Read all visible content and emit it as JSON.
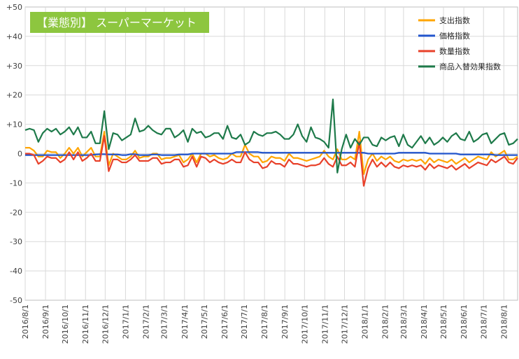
{
  "chart_data": {
    "type": "line",
    "title_badge": "【業態別】 スーパーマーケット",
    "x_start": "2016/8/1",
    "x_end": "2018/8/22",
    "x_tick_labels": [
      "2016/8/1",
      "2016/9/1",
      "2016/10/1",
      "2016/11/1",
      "2016/12/1",
      "2017/1/1",
      "2017/2/1",
      "2017/3/1",
      "2017/4/1",
      "2017/5/1",
      "2017/6/1",
      "2017/7/1",
      "2017/8/1",
      "2017/9/1",
      "2017/10/1",
      "2017/11/1",
      "2017/12/1",
      "2018/1/1",
      "2018/2/1",
      "2018/3/1",
      "2018/4/1",
      "2018/5/1",
      "2018/6/1",
      "2018/7/1",
      "2018/8/1"
    ],
    "y_ticks": [
      "+50",
      "+40",
      "+30",
      "+20",
      "+10",
      "0",
      "-10",
      "-20",
      "-30",
      "-40",
      "-50"
    ],
    "ylim": [
      -50,
      50
    ],
    "grid": true,
    "legend_position": "top-right",
    "series": [
      {
        "name": "支出指数",
        "color": "#FFA500",
        "values": [
          2.0,
          2.0,
          1.0,
          -1.0,
          -1.0,
          1.0,
          0.5,
          0.5,
          -1.5,
          0.0,
          2.0,
          0.0,
          2.0,
          -1.0,
          0.5,
          2.0,
          -1.0,
          -1.0,
          7.5,
          -4.0,
          0.0,
          -1.0,
          -2.0,
          -2.0,
          -1.0,
          1.0,
          -1.5,
          -1.0,
          -1.0,
          0.0,
          0.0,
          -2.0,
          -1.5,
          -1.5,
          -1.0,
          -0.5,
          -3.0,
          -2.0,
          0.0,
          -3.0,
          0.0,
          0.0,
          -1.0,
          -0.5,
          -1.5,
          -2.0,
          -1.5,
          0.0,
          -1.0,
          -1.0,
          3.0,
          0.0,
          -1.0,
          -1.0,
          -3.0,
          -2.5,
          -1.0,
          -1.5,
          -1.5,
          -2.5,
          0.0,
          -1.5,
          -1.5,
          -2.0,
          -2.5,
          -2.0,
          -1.5,
          -1.0,
          1.0,
          -1.0,
          -2.0,
          1.5,
          -2.0,
          -2.0,
          -1.0,
          -2.0,
          7.5,
          -7.0,
          -2.0,
          0.0,
          -2.5,
          -1.0,
          -2.0,
          -1.0,
          -2.5,
          -3.0,
          -2.0,
          -2.5,
          -2.0,
          -2.5,
          -2.0,
          -3.5,
          -1.5,
          -3.0,
          -2.0,
          -2.5,
          -3.0,
          -2.0,
          -3.5,
          -2.5,
          -1.5,
          -3.0,
          -2.0,
          -1.0,
          -1.5,
          -2.0,
          0.5,
          -1.0,
          0.0,
          1.0,
          -2.0,
          -2.0,
          -1.0
        ],
        "note_values_weekly": true
      },
      {
        "name": "価格指数",
        "color": "#2255CC",
        "values": [
          -0.5,
          -0.5,
          -0.5,
          -0.5,
          -0.5,
          -0.5,
          -0.5,
          -0.5,
          -0.5,
          -0.5,
          -0.5,
          -0.5,
          -0.5,
          -0.5,
          -0.5,
          -0.5,
          -0.3,
          -0.2,
          -0.2,
          -0.3,
          -0.3,
          -0.3,
          -0.5,
          -0.5,
          -0.2,
          -0.2,
          -0.5,
          -0.5,
          -0.5,
          -0.3,
          -0.3,
          -0.5,
          -0.5,
          -0.5,
          -0.5,
          -0.3,
          -0.3,
          -0.3,
          0.0,
          0.0,
          0.0,
          0.0,
          0.0,
          0.0,
          0.0,
          0.0,
          0.0,
          0.0,
          0.5,
          0.5,
          0.5,
          0.5,
          0.5,
          0.5,
          0.3,
          0.3,
          0.3,
          0.3,
          0.3,
          0.3,
          0.3,
          0.3,
          0.3,
          0.3,
          0.3,
          0.3,
          0.3,
          0.3,
          0.3,
          0.3,
          0.3,
          0.3,
          0.3,
          0.3,
          0.3,
          0.3,
          0.3,
          0.3,
          0.0,
          0.0,
          0.0,
          0.0,
          0.0,
          0.0,
          0.0,
          0.3,
          0.3,
          0.3,
          0.3,
          0.3,
          0.3,
          0.3,
          0.0,
          0.0,
          0.0,
          0.0,
          0.0,
          0.0,
          0.0,
          -0.3,
          -0.3,
          -0.3,
          -0.3,
          -0.3,
          -0.3,
          -0.3,
          -0.3,
          -0.5,
          -0.5,
          -0.5,
          -0.5,
          -0.5,
          -0.5
        ]
      },
      {
        "name": "数量指数",
        "color": "#E8412A",
        "values": [
          0.0,
          0.0,
          -0.5,
          -3.5,
          -2.5,
          -1.0,
          -1.5,
          -1.5,
          -3.0,
          -2.0,
          0.5,
          -2.0,
          0.5,
          -2.5,
          -1.5,
          0.0,
          -2.5,
          -2.5,
          6.0,
          -6.0,
          -2.0,
          -2.0,
          -3.0,
          -3.0,
          -2.0,
          -0.5,
          -2.5,
          -2.5,
          -2.5,
          -1.5,
          -1.5,
          -3.5,
          -3.0,
          -3.0,
          -2.0,
          -2.0,
          -4.5,
          -4.0,
          -1.0,
          -4.5,
          -1.0,
          -1.5,
          -3.0,
          -2.0,
          -3.0,
          -3.5,
          -3.0,
          -2.0,
          -3.0,
          -3.0,
          0.5,
          -2.0,
          -3.0,
          -3.0,
          -5.0,
          -4.5,
          -2.5,
          -3.5,
          -3.5,
          -4.5,
          -2.0,
          -3.5,
          -3.5,
          -4.0,
          -4.5,
          -4.0,
          -4.0,
          -3.5,
          -1.5,
          -3.5,
          -4.5,
          -1.0,
          -4.0,
          -4.0,
          -3.0,
          -4.5,
          4.0,
          -11.0,
          -5.0,
          -2.0,
          -4.5,
          -3.0,
          -4.5,
          -3.0,
          -4.5,
          -5.0,
          -4.0,
          -4.5,
          -4.0,
          -4.5,
          -4.0,
          -5.5,
          -3.5,
          -5.0,
          -4.0,
          -4.5,
          -5.0,
          -4.0,
          -5.5,
          -4.5,
          -3.5,
          -5.0,
          -4.0,
          -3.0,
          -3.5,
          -4.0,
          -2.0,
          -3.0,
          -2.0,
          -1.0,
          -3.0,
          -3.5,
          -1.5
        ]
      },
      {
        "name": "商品入替効果指数",
        "color": "#1E7A4A",
        "values": [
          8.0,
          8.5,
          8.0,
          4.0,
          7.0,
          8.5,
          7.5,
          8.5,
          6.5,
          7.5,
          9.0,
          6.5,
          9.0,
          5.5,
          5.5,
          7.5,
          3.5,
          3.5,
          14.5,
          1.5,
          7.0,
          6.5,
          4.5,
          5.5,
          6.5,
          12.0,
          7.5,
          8.0,
          9.5,
          8.0,
          7.0,
          6.5,
          8.5,
          8.5,
          5.5,
          6.5,
          8.0,
          4.0,
          8.5,
          7.0,
          7.5,
          5.5,
          6.0,
          7.0,
          7.0,
          5.0,
          9.5,
          5.5,
          5.0,
          6.5,
          3.0,
          4.0,
          7.5,
          6.5,
          6.0,
          7.0,
          7.0,
          7.5,
          6.5,
          5.0,
          5.0,
          6.5,
          10.0,
          6.0,
          4.0,
          9.0,
          5.5,
          5.0,
          4.0,
          2.0,
          18.5,
          -6.5,
          1.5,
          6.5,
          2.0,
          5.0,
          3.0,
          5.5,
          5.5,
          3.0,
          2.5,
          5.5,
          4.5,
          5.5,
          6.0,
          2.5,
          6.5,
          3.0,
          2.0,
          4.0,
          6.0,
          3.5,
          5.5,
          3.0,
          4.0,
          5.5,
          4.0,
          6.0,
          7.0,
          5.0,
          4.5,
          7.5,
          4.0,
          5.0,
          6.5,
          7.0,
          3.5,
          5.0,
          6.5,
          7.0,
          3.0,
          3.5,
          5.0
        ]
      }
    ]
  }
}
